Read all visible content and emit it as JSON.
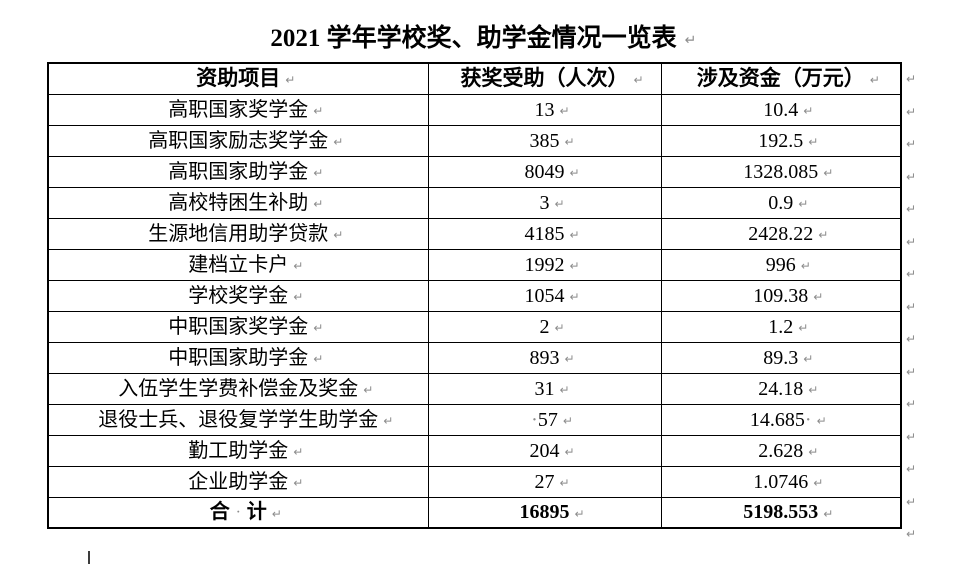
{
  "title": "2021 学年学校奖、助学金情况一览表",
  "marks": {
    "pilcrow": "↵",
    "space_dot": "·"
  },
  "table": {
    "headers": [
      "资助项目",
      "获奖受助（人次）",
      "涉及资金（万元）"
    ],
    "rows": [
      {
        "project": "高职国家奖学金",
        "count": "13",
        "amount": "10.4"
      },
      {
        "project": "高职国家励志奖学金",
        "count": "385",
        "amount": "192.5"
      },
      {
        "project": "高职国家助学金",
        "count": "8049",
        "amount": "1328.085"
      },
      {
        "project": "高校特困生补助",
        "count": "3",
        "amount": "0.9"
      },
      {
        "project": "生源地信用助学贷款",
        "count": "4185",
        "amount": "2428.22"
      },
      {
        "project": "建档立卡户",
        "count": "1992",
        "amount": "996"
      },
      {
        "project": "学校奖学金",
        "count": "1054",
        "amount": "109.38"
      },
      {
        "project": "中职国家奖学金",
        "count": "2",
        "amount": "1.2"
      },
      {
        "project": "中职国家助学金",
        "count": "893",
        "amount": "89.3"
      },
      {
        "project": "入伍学生学费补偿金及奖金",
        "count": "31",
        "amount": "24.18"
      },
      {
        "project": "退役士兵、退役复学学生助学金",
        "count": "57",
        "amount": "14.685",
        "count_prefix": "·",
        "amount_suffix": "·"
      },
      {
        "project": "勤工助学金",
        "count": "204",
        "amount": "2.628"
      },
      {
        "project": "企业助学金",
        "count": "27",
        "amount": "1.0746"
      }
    ],
    "total": {
      "label_left": "合",
      "label_right": "计",
      "count": "16895",
      "amount": "5198.553"
    }
  },
  "colors": {
    "border": "#000000",
    "text": "#000000",
    "formatting_mark": "#8c8c8c"
  }
}
